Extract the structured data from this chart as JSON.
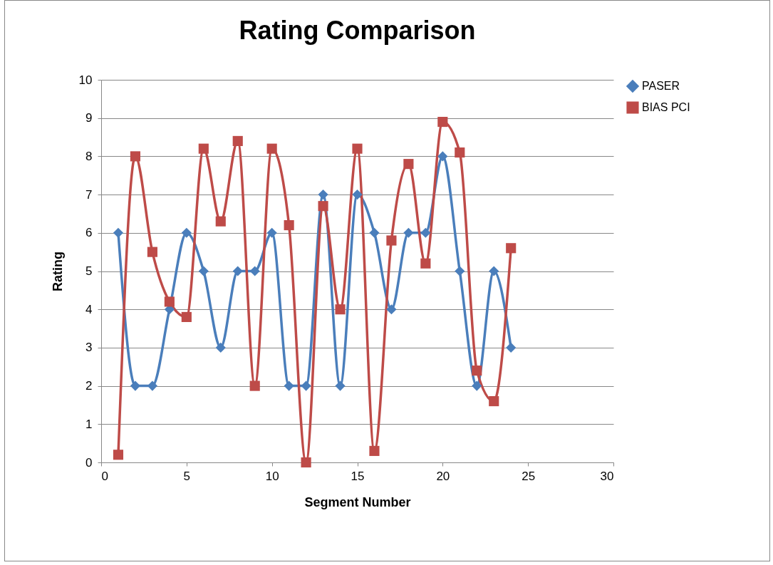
{
  "chart_data": {
    "type": "line",
    "title": "Rating Comparison",
    "xlabel": "Segment Number",
    "ylabel": "Rating",
    "x": [
      1,
      2,
      3,
      4,
      5,
      6,
      7,
      8,
      9,
      10,
      11,
      12,
      13,
      14,
      15,
      16,
      17,
      18,
      19,
      20,
      21,
      22,
      23,
      24
    ],
    "series": [
      {
        "name": "PASER",
        "color": "#4a7ebb",
        "marker": "diamond",
        "values": [
          6,
          2,
          2,
          4,
          6,
          5,
          3,
          5,
          5,
          6,
          2,
          2,
          7,
          2,
          7,
          6,
          4,
          6,
          6,
          8,
          5,
          2,
          5,
          3
        ]
      },
      {
        "name": "BIAS PCI",
        "color": "#be4b48",
        "marker": "square",
        "values": [
          0.2,
          8.0,
          5.5,
          4.2,
          3.8,
          8.2,
          6.3,
          8.4,
          2.0,
          8.2,
          6.2,
          0,
          6.7,
          4.0,
          8.2,
          0.3,
          5.8,
          7.8,
          5.2,
          8.9,
          8.1,
          2.4,
          1.6,
          5.6
        ]
      }
    ],
    "xlim": [
      0,
      30
    ],
    "xticks": [
      0,
      5,
      10,
      15,
      20,
      25,
      30
    ],
    "ylim": [
      0,
      10
    ],
    "yticks": [
      0,
      1,
      2,
      3,
      4,
      5,
      6,
      7,
      8,
      9,
      10
    ],
    "grid": "y",
    "legend": "right",
    "line_style": "solid"
  }
}
